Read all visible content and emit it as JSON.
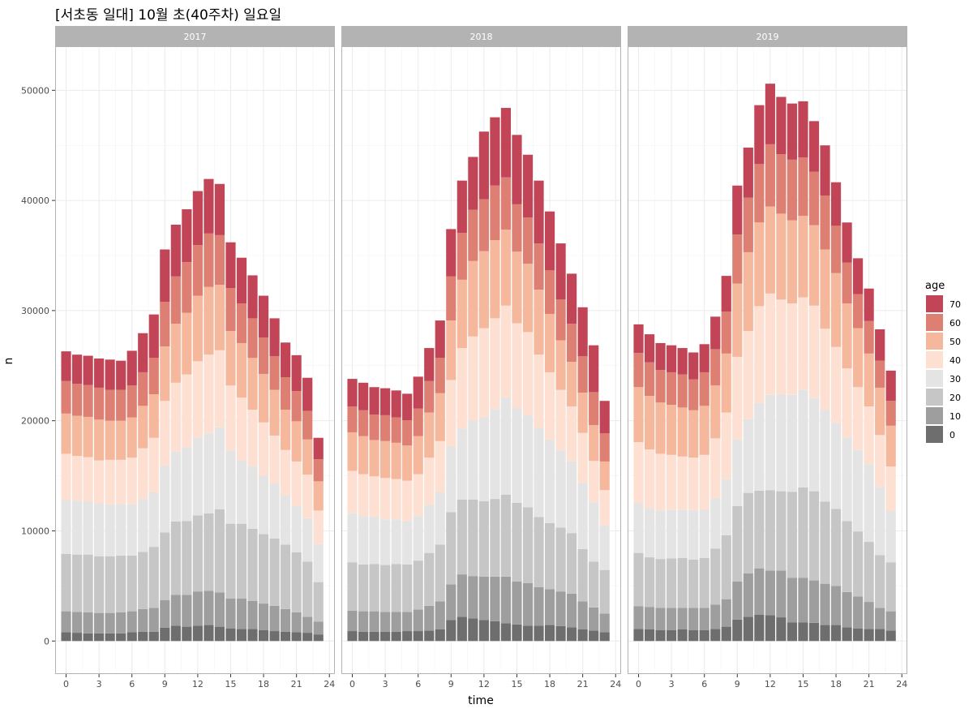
{
  "chart_data": {
    "type": "bar",
    "stacked": true,
    "title": "[서초동 일대] 10월 초(40주차) 일요일",
    "xlabel": "time",
    "ylabel": "n",
    "xlim": [
      -1,
      24.5
    ],
    "ylim": [
      -3000,
      54000
    ],
    "x_ticks": [
      0,
      3,
      6,
      9,
      12,
      15,
      18,
      21,
      24
    ],
    "y_ticks": [
      0,
      10000,
      20000,
      30000,
      40000,
      50000
    ],
    "y_tick_labels": [
      "0",
      "10000",
      "20000",
      "30000",
      "40000",
      "50000"
    ],
    "grid": true,
    "legend": {
      "title": "age",
      "position": "right"
    },
    "categories": [
      0,
      1,
      2,
      3,
      4,
      5,
      6,
      7,
      8,
      9,
      10,
      11,
      12,
      13,
      14,
      15,
      16,
      17,
      18,
      19,
      20,
      21,
      22,
      23
    ],
    "series_order": [
      "0",
      "10",
      "20",
      "30",
      "40",
      "50",
      "60",
      "70"
    ],
    "colors": {
      "0": "#6e6e6e",
      "10": "#9e9e9e",
      "20": "#c6c6c6",
      "30": "#e4e4e4",
      "40": "#fde0d2",
      "50": "#f5b89c",
      "60": "#dd7f72",
      "70": "#c14556"
    },
    "panels": [
      {
        "label": "2017",
        "series": [
          {
            "name": "0",
            "values": [
              800,
              750,
              700,
              700,
              700,
              700,
              800,
              850,
              850,
              1200,
              1400,
              1300,
              1400,
              1450,
              1300,
              1150,
              1100,
              1100,
              1000,
              900,
              850,
              800,
              750,
              600
            ]
          },
          {
            "name": "10",
            "values": [
              1900,
              1900,
              1900,
              1850,
              1850,
              1900,
              1900,
              2050,
              2150,
              2500,
              2800,
              2900,
              3100,
              3100,
              3100,
              2700,
              2750,
              2550,
              2400,
              2300,
              2050,
              1800,
              1450,
              1150
            ]
          },
          {
            "name": "20",
            "values": [
              5200,
              5200,
              5250,
              5150,
              5150,
              5150,
              5050,
              5200,
              5550,
              6150,
              6650,
              6700,
              6900,
              7050,
              7550,
              6800,
              6800,
              6550,
              6300,
              6100,
              5850,
              5450,
              5000,
              3600
            ]
          },
          {
            "name": "30",
            "values": [
              4900,
              4900,
              4800,
              4800,
              4700,
              4700,
              4650,
              4800,
              4950,
              6050,
              6350,
              6700,
              7050,
              7250,
              7450,
              6650,
              5750,
              5700,
              5300,
              5000,
              4450,
              4200,
              3950,
              3450
            ]
          },
          {
            "name": "40",
            "values": [
              4200,
              4050,
              4050,
              3900,
              4050,
              4000,
              4250,
              4600,
              4950,
              5900,
              6250,
              6600,
              6950,
              7150,
              7000,
              5900,
              5700,
              5100,
              4850,
              4350,
              4150,
              4050,
              3950,
              3050
            ]
          },
          {
            "name": "50",
            "values": [
              3650,
              3650,
              3650,
              3700,
              3550,
              3550,
              3650,
              3850,
              3950,
              4950,
              5350,
              5600,
              5950,
              6150,
              5950,
              4950,
              4950,
              4700,
              4400,
              4150,
              3650,
              3650,
              3200,
              2650
            ]
          },
          {
            "name": "60",
            "values": [
              2950,
              2900,
              2900,
              2900,
              2800,
              2800,
              2900,
              3050,
              3300,
              4050,
              4300,
              4600,
              4600,
              4850,
              4500,
              3900,
              3600,
              3600,
              3300,
              3050,
              2950,
              2750,
              2600,
              2000
            ]
          },
          {
            "name": "70",
            "values": [
              2700,
              2650,
              2650,
              2650,
              2750,
              2650,
              3150,
              3550,
              3950,
              4750,
              4700,
              4800,
              4900,
              4950,
              4650,
              4150,
              4150,
              3900,
              3800,
              3450,
              3150,
              3250,
              3000,
              1950
            ]
          }
        ]
      },
      {
        "label": "2018",
        "series": [
          {
            "name": "0",
            "values": [
              900,
              850,
              850,
              850,
              850,
              900,
              900,
              950,
              1050,
              1900,
              2200,
              2050,
              1900,
              1800,
              1600,
              1500,
              1400,
              1400,
              1450,
              1350,
              1250,
              1050,
              950,
              800
            ]
          },
          {
            "name": "10",
            "values": [
              1850,
              1850,
              1850,
              1800,
              1800,
              1750,
              1950,
              2250,
              2550,
              3250,
              3850,
              3850,
              3950,
              4050,
              4250,
              3900,
              3850,
              3500,
              3250,
              3150,
              3050,
              2550,
              2100,
              1700
            ]
          },
          {
            "name": "20",
            "values": [
              4400,
              4250,
              4300,
              4250,
              4350,
              4300,
              4450,
              4800,
              5150,
              6550,
              6800,
              6950,
              6850,
              7050,
              7450,
              7150,
              6900,
              6350,
              6000,
              5800,
              5500,
              4750,
              4150,
              3950
            ]
          },
          {
            "name": "30",
            "values": [
              4450,
              4400,
              4250,
              4150,
              4050,
              3950,
              4050,
              4350,
              4750,
              5950,
              6450,
              7150,
              7600,
              8150,
              8800,
              8600,
              8350,
              8100,
              7550,
              7000,
              6500,
              6000,
              5400,
              4050
            ]
          },
          {
            "name": "40",
            "values": [
              3850,
              3800,
              3700,
              3750,
              3650,
              3650,
              3800,
              4300,
              4650,
              6050,
              7300,
              7650,
              8100,
              8250,
              8350,
              7700,
              7550,
              6650,
              6150,
              5500,
              5000,
              4550,
              3750,
              3200
            ]
          },
          {
            "name": "50",
            "values": [
              3500,
              3450,
              3300,
              3350,
              3300,
              3200,
              3450,
              4100,
              4350,
              5400,
              6200,
              6850,
              7000,
              7100,
              6900,
              6500,
              6200,
              5900,
              5300,
              4500,
              4050,
              3650,
              3250,
              2600
            ]
          },
          {
            "name": "60",
            "values": [
              2350,
              2350,
              2300,
              2350,
              2300,
              2300,
              2500,
              2850,
              3200,
              4000,
              4250,
              4650,
              4700,
              4950,
              4750,
              4300,
              4200,
              4200,
              3950,
              3700,
              3450,
              3300,
              3000,
              2550
            ]
          },
          {
            "name": "70",
            "values": [
              2500,
              2500,
              2500,
              2450,
              2450,
              2400,
              2900,
              3000,
              3400,
              4300,
              4750,
              4800,
              6150,
              6200,
              6300,
              6300,
              5700,
              5700,
              5350,
              5100,
              4550,
              4450,
              4250,
              2950
            ]
          }
        ]
      },
      {
        "label": "2019",
        "series": [
          {
            "name": "0",
            "values": [
              1100,
              1050,
              1000,
              1000,
              1050,
              1000,
              1000,
              1100,
              1300,
              1950,
              2200,
              2400,
              2350,
              2150,
              1700,
              1700,
              1650,
              1450,
              1450,
              1250,
              1150,
              1100,
              1100,
              950
            ]
          },
          {
            "name": "10",
            "values": [
              2050,
              2050,
              2000,
              2000,
              1950,
              2000,
              2000,
              2200,
              2500,
              3450,
              3950,
              4200,
              4050,
              4250,
              4050,
              4050,
              3850,
              3750,
              3550,
              3200,
              2900,
              2450,
              1900,
              1750
            ]
          },
          {
            "name": "20",
            "values": [
              4850,
              4500,
              4450,
              4500,
              4550,
              4400,
              4550,
              5100,
              5800,
              6850,
              7300,
              7050,
              7300,
              7200,
              7800,
              8200,
              8100,
              7450,
              7000,
              6450,
              5900,
              5450,
              4800,
              4450
            ]
          },
          {
            "name": "30",
            "values": [
              4500,
              4450,
              4400,
              4400,
              4350,
              4500,
              4400,
              4550,
              5100,
              6050,
              6700,
              7950,
              8650,
              8800,
              8800,
              8850,
              8450,
              8350,
              7800,
              7550,
              7400,
              7050,
              6200,
              4650
            ]
          },
          {
            "name": "40",
            "values": [
              5550,
              5350,
              5150,
              5000,
              4850,
              4750,
              4950,
              5450,
              6050,
              7500,
              8000,
              8800,
              9200,
              8600,
              8300,
              8400,
              8400,
              7350,
              6900,
              6300,
              5700,
              5250,
              4700,
              4050
            ]
          },
          {
            "name": "50",
            "values": [
              5000,
              4850,
              4650,
              4550,
              4450,
              4300,
              4450,
              4800,
              5350,
              6650,
              7150,
              7600,
              7900,
              7800,
              7550,
              7400,
              7300,
              7200,
              6700,
              5900,
              5350,
              4800,
              4300,
              3700
            ]
          },
          {
            "name": "60",
            "values": [
              3100,
              3050,
              2950,
              2950,
              3000,
              2800,
              3050,
              3300,
              3800,
              4450,
              4950,
              5300,
              5650,
              5400,
              5500,
              5300,
              4850,
              4900,
              4300,
              3700,
              3100,
              2950,
              2450,
              2250
            ]
          },
          {
            "name": "70",
            "values": [
              2600,
              2550,
              2450,
              2450,
              2400,
              2450,
              2550,
              2950,
              3250,
              4450,
              4550,
              5350,
              5500,
              5200,
              5100,
              5100,
              4600,
              4550,
              3950,
              3650,
              3250,
              2950,
              2850,
              2750
            ]
          }
        ]
      }
    ]
  }
}
